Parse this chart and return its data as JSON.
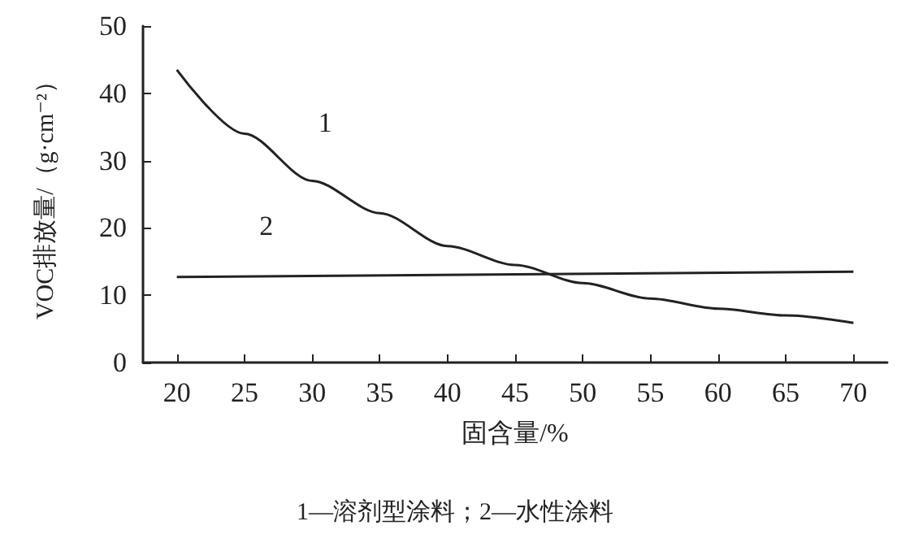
{
  "chart_data": {
    "type": "line",
    "xlabel": "固含量/%",
    "ylabel": "VOC排放量/（g·cm⁻²）",
    "annotations": [
      "1—溶剂型涂料；2—水性涂料"
    ],
    "series": [
      {
        "name": "1",
        "color": "#222222",
        "x": [
          20,
          25,
          30,
          35,
          40,
          45,
          50,
          55,
          60,
          65,
          70
        ],
        "values": [
          43.5,
          34,
          27,
          22.2,
          17.3,
          14.5,
          11.8,
          9.5,
          8,
          7,
          5.9
        ]
      },
      {
        "name": "2",
        "color": "#222222",
        "x": [
          20,
          70
        ],
        "values": [
          12.7,
          13.5
        ]
      }
    ],
    "xlim": [
      17.5,
      72.5
    ],
    "xticks": [
      20,
      25,
      30,
      35,
      40,
      45,
      50,
      55,
      60,
      65,
      70
    ],
    "ylim": [
      0,
      50
    ],
    "yticks": [
      0,
      10,
      20,
      30,
      40,
      50
    ],
    "grid": false,
    "legend": false,
    "marker": "none",
    "line_style": "solid"
  }
}
